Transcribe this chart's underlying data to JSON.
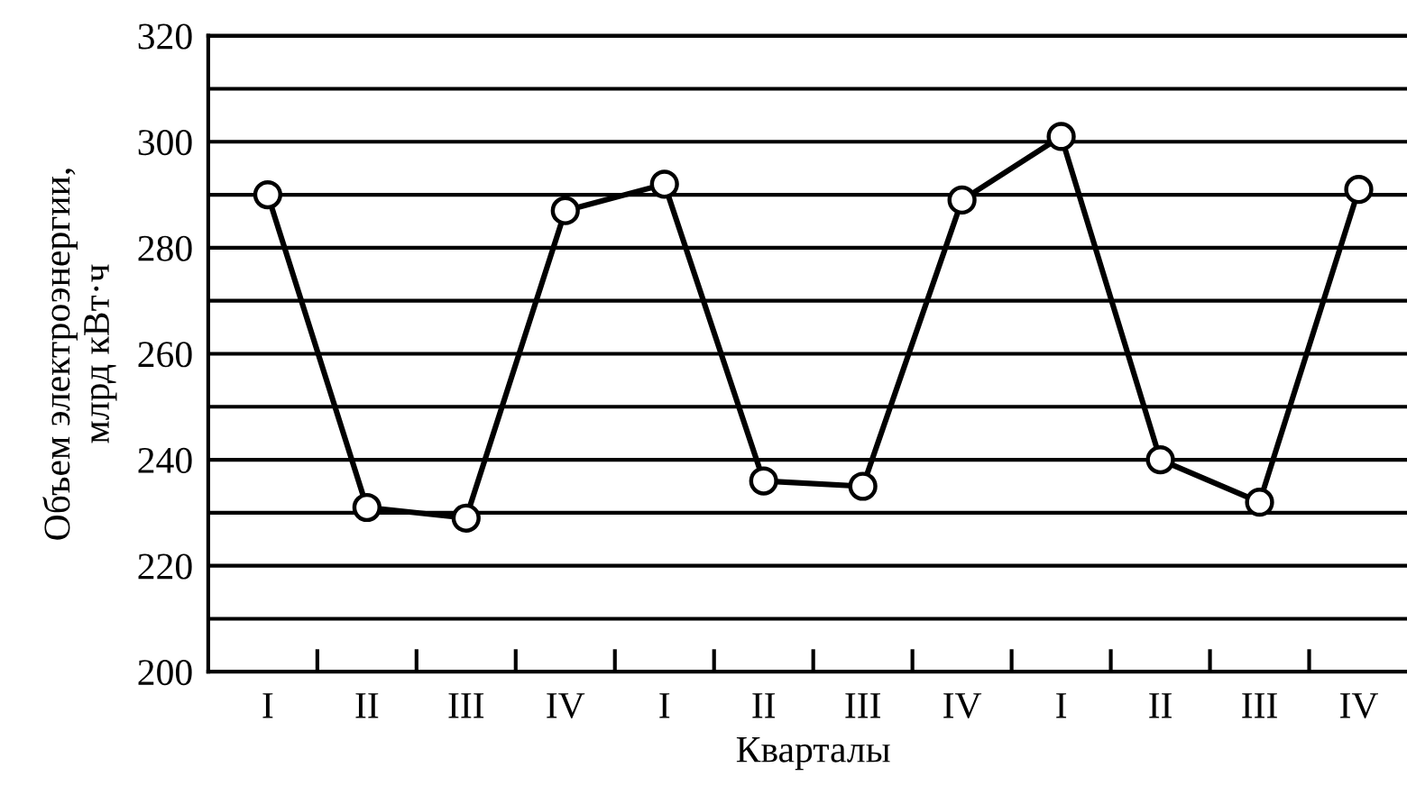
{
  "chart_data": {
    "type": "line",
    "xlabel": "Кварталы",
    "ylabel": "Объем электроэнергии,\nмлрд кВт·ч",
    "categories": [
      "I",
      "II",
      "III",
      "IV",
      "I",
      "II",
      "III",
      "IV",
      "I",
      "II",
      "III",
      "IV"
    ],
    "series": [
      {
        "color": "#000000",
        "values": [
          290,
          231,
          229,
          287,
          292,
          236,
          235,
          289,
          301,
          240,
          232,
          291
        ]
      }
    ],
    "ylim": [
      200,
      320
    ],
    "yticks": [
      200,
      {
        "value": 210,
        "label": null
      },
      220,
      {
        "value": 230,
        "label": null
      },
      240,
      {
        "value": 250,
        "label": null
      },
      260,
      {
        "value": 270,
        "label": null
      },
      280,
      {
        "value": 290,
        "label": null
      },
      300,
      {
        "value": 310,
        "label": null
      },
      320
    ],
    "grid": "y",
    "marker": "circle",
    "line_style": "solid",
    "legend": false
  }
}
